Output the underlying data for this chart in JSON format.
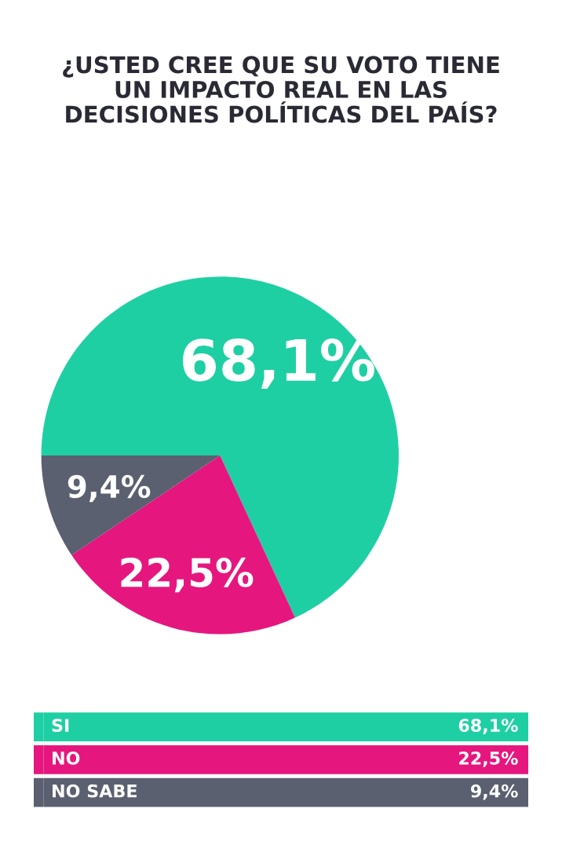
{
  "chart_data": {
    "type": "pie",
    "title": "¿USTED CREE QUE SU VOTO TIENE\nUN IMPACTO REAL EN LAS\nDECISIONES POLÍTICAS DEL PAÍS?",
    "categories": [
      "SI",
      "NO",
      "NO SABE"
    ],
    "values": [
      68.1,
      22.5,
      9.4
    ],
    "colors": [
      "#1fcfa4",
      "#e5177e",
      "#5b6070"
    ],
    "value_labels": [
      "68,1%",
      "22,5%",
      "9,4%"
    ],
    "legend": "bottom"
  }
}
